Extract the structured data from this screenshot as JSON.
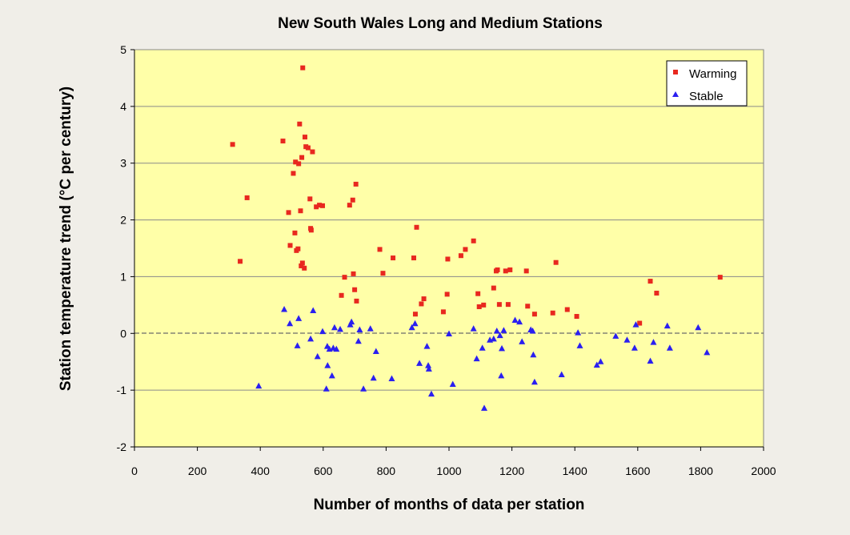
{
  "chart_data": {
    "type": "scatter",
    "title": "New South Wales Long and Medium Stations",
    "xlabel": "Number of months of data per station",
    "ylabel": "Station temperature trend (°C per century)",
    "xlim": [
      0,
      2000
    ],
    "ylim": [
      -2,
      5
    ],
    "x_ticks": [
      "0",
      "200",
      "400",
      "600",
      "800",
      "1000",
      "1200",
      "1400",
      "1600",
      "1800",
      "2000"
    ],
    "y_ticks": [
      "-2",
      "-1",
      "0",
      "1",
      "2",
      "3",
      "4",
      "5"
    ],
    "grid": "horizontal",
    "legend_position": "top-right",
    "colors": {
      "plot_background": "#ffffa8",
      "page_background": "#f0eee8",
      "warming": "#e8281f",
      "stable": "#2a1ff0"
    },
    "series": [
      {
        "name": "Warming",
        "marker": "square",
        "color": "#e8281f",
        "points": [
          [
            312,
            3.33
          ],
          [
            336,
            1.27
          ],
          [
            358,
            2.39
          ],
          [
            472,
            3.39
          ],
          [
            490,
            2.13
          ],
          [
            495,
            1.55
          ],
          [
            505,
            2.82
          ],
          [
            510,
            1.77
          ],
          [
            512,
            3.02
          ],
          [
            515,
            1.46
          ],
          [
            520,
            1.49
          ],
          [
            522,
            2.99
          ],
          [
            525,
            3.69
          ],
          [
            528,
            2.16
          ],
          [
            530,
            1.19
          ],
          [
            532,
            3.1
          ],
          [
            534,
            1.24
          ],
          [
            535,
            4.68
          ],
          [
            540,
            1.15
          ],
          [
            542,
            3.46
          ],
          [
            545,
            3.29
          ],
          [
            552,
            3.27
          ],
          [
            558,
            2.37
          ],
          [
            560,
            1.85
          ],
          [
            562,
            1.82
          ],
          [
            566,
            3.2
          ],
          [
            578,
            2.23
          ],
          [
            588,
            2.26
          ],
          [
            598,
            2.25
          ],
          [
            658,
            0.67
          ],
          [
            668,
            0.99
          ],
          [
            684,
            2.26
          ],
          [
            694,
            2.35
          ],
          [
            696,
            1.05
          ],
          [
            700,
            0.77
          ],
          [
            704,
            2.63
          ],
          [
            706,
            0.57
          ],
          [
            780,
            1.48
          ],
          [
            790,
            1.06
          ],
          [
            822,
            1.33
          ],
          [
            888,
            1.33
          ],
          [
            893,
            0.34
          ],
          [
            897,
            1.87
          ],
          [
            912,
            0.52
          ],
          [
            920,
            0.61
          ],
          [
            982,
            0.38
          ],
          [
            994,
            0.69
          ],
          [
            996,
            1.31
          ],
          [
            1038,
            1.37
          ],
          [
            1052,
            1.48
          ],
          [
            1078,
            1.63
          ],
          [
            1092,
            0.7
          ],
          [
            1096,
            0.47
          ],
          [
            1110,
            0.5
          ],
          [
            1142,
            0.8
          ],
          [
            1150,
            1.1
          ],
          [
            1154,
            1.12
          ],
          [
            1160,
            0.51
          ],
          [
            1180,
            1.1
          ],
          [
            1188,
            0.51
          ],
          [
            1194,
            1.12
          ],
          [
            1246,
            1.1
          ],
          [
            1250,
            0.48
          ],
          [
            1272,
            0.34
          ],
          [
            1330,
            0.36
          ],
          [
            1340,
            1.25
          ],
          [
            1376,
            0.42
          ],
          [
            1406,
            0.3
          ],
          [
            1606,
            0.18
          ],
          [
            1640,
            0.92
          ],
          [
            1660,
            0.71
          ],
          [
            1862,
            0.99
          ]
        ]
      },
      {
        "name": "Stable",
        "marker": "triangle",
        "color": "#2a1ff0",
        "points": [
          [
            395,
            -0.93
          ],
          [
            476,
            0.42
          ],
          [
            494,
            0.17
          ],
          [
            518,
            -0.22
          ],
          [
            522,
            0.26
          ],
          [
            560,
            -0.1
          ],
          [
            568,
            0.4
          ],
          [
            582,
            -0.41
          ],
          [
            598,
            0.03
          ],
          [
            610,
            -0.98
          ],
          [
            613,
            -0.23
          ],
          [
            614,
            -0.57
          ],
          [
            620,
            -0.28
          ],
          [
            628,
            -0.75
          ],
          [
            632,
            -0.26
          ],
          [
            636,
            0.1
          ],
          [
            642,
            -0.28
          ],
          [
            654,
            0.07
          ],
          [
            686,
            0.15
          ],
          [
            690,
            0.2
          ],
          [
            712,
            -0.14
          ],
          [
            716,
            0.06
          ],
          [
            728,
            -0.98
          ],
          [
            750,
            0.08
          ],
          [
            760,
            -0.79
          ],
          [
            768,
            -0.32
          ],
          [
            818,
            -0.8
          ],
          [
            882,
            0.1
          ],
          [
            892,
            0.17
          ],
          [
            906,
            -0.53
          ],
          [
            930,
            -0.23
          ],
          [
            934,
            -0.57
          ],
          [
            936,
            -0.63
          ],
          [
            944,
            -1.07
          ],
          [
            1000,
            -0.01
          ],
          [
            1012,
            -0.9
          ],
          [
            1078,
            0.08
          ],
          [
            1088,
            -0.45
          ],
          [
            1106,
            -0.26
          ],
          [
            1112,
            -1.32
          ],
          [
            1130,
            -0.12
          ],
          [
            1142,
            -0.1
          ],
          [
            1152,
            0.04
          ],
          [
            1162,
            -0.04
          ],
          [
            1166,
            -0.75
          ],
          [
            1168,
            -0.27
          ],
          [
            1174,
            0.05
          ],
          [
            1210,
            0.23
          ],
          [
            1224,
            0.2
          ],
          [
            1232,
            -0.15
          ],
          [
            1260,
            0.06
          ],
          [
            1266,
            0.04
          ],
          [
            1268,
            -0.38
          ],
          [
            1272,
            -0.86
          ],
          [
            1358,
            -0.73
          ],
          [
            1410,
            0.01
          ],
          [
            1416,
            -0.22
          ],
          [
            1470,
            -0.56
          ],
          [
            1482,
            -0.5
          ],
          [
            1530,
            -0.05
          ],
          [
            1566,
            -0.12
          ],
          [
            1590,
            -0.26
          ],
          [
            1594,
            0.15
          ],
          [
            1640,
            -0.49
          ],
          [
            1650,
            -0.16
          ],
          [
            1694,
            0.13
          ],
          [
            1702,
            -0.26
          ],
          [
            1792,
            0.1
          ],
          [
            1820,
            -0.34
          ]
        ]
      }
    ]
  }
}
